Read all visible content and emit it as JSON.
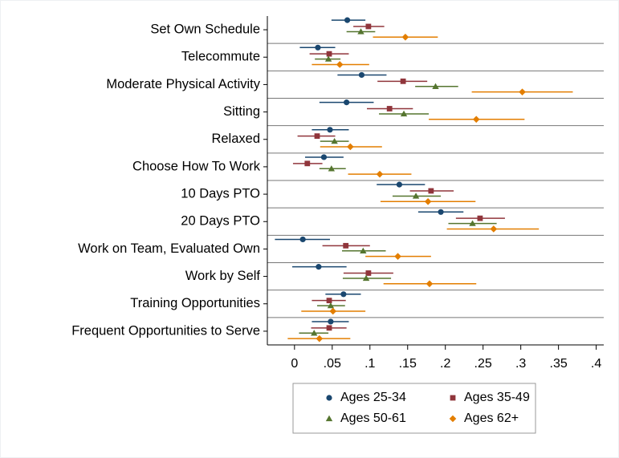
{
  "chart_data": {
    "type": "dot-errorbar",
    "categories": [
      "Set Own Schedule",
      "Telecommute",
      "Moderate Physical Activity",
      "Sitting",
      "Relaxed",
      "Choose How To Work",
      "10 Days PTO",
      "20 Days PTO",
      "Work on Team, Evaluated Own",
      "Work by Self",
      "Training Opportunities",
      "Frequent Opportunities to Serve"
    ],
    "series": [
      {
        "name": "Ages 25-34",
        "color": "#1a476f",
        "marker": "circle",
        "values": [
          0.07,
          0.031,
          0.089,
          0.069,
          0.047,
          0.039,
          0.139,
          0.194,
          0.011,
          0.032,
          0.065,
          0.048
        ],
        "lower": [
          0.049,
          0.007,
          0.057,
          0.033,
          0.023,
          0.014,
          0.109,
          0.164,
          -0.026,
          -0.003,
          0.041,
          0.023
        ],
        "upper": [
          0.094,
          0.054,
          0.122,
          0.105,
          0.072,
          0.065,
          0.173,
          0.224,
          0.047,
          0.069,
          0.088,
          0.072
        ]
      },
      {
        "name": "Ages 35-49",
        "color": "#90353b",
        "marker": "square",
        "values": [
          0.098,
          0.046,
          0.144,
          0.126,
          0.03,
          0.017,
          0.181,
          0.246,
          0.068,
          0.098,
          0.046,
          0.046
        ],
        "lower": [
          0.078,
          0.02,
          0.11,
          0.096,
          0.004,
          -0.002,
          0.153,
          0.214,
          0.037,
          0.065,
          0.023,
          0.022
        ],
        "upper": [
          0.119,
          0.072,
          0.176,
          0.157,
          0.054,
          0.037,
          0.211,
          0.279,
          0.1,
          0.131,
          0.068,
          0.069
        ]
      },
      {
        "name": "Ages 50-61",
        "color": "#55752f",
        "marker": "triangle",
        "values": [
          0.088,
          0.045,
          0.187,
          0.145,
          0.053,
          0.049,
          0.161,
          0.236,
          0.091,
          0.095,
          0.048,
          0.026
        ],
        "lower": [
          0.069,
          0.027,
          0.16,
          0.112,
          0.034,
          0.033,
          0.13,
          0.204,
          0.063,
          0.064,
          0.03,
          0.006
        ],
        "upper": [
          0.107,
          0.061,
          0.217,
          0.178,
          0.072,
          0.068,
          0.194,
          0.268,
          0.121,
          0.128,
          0.067,
          0.045
        ]
      },
      {
        "name": "Ages 62+",
        "color": "#e37e00",
        "marker": "diamond",
        "values": [
          0.147,
          0.06,
          0.302,
          0.241,
          0.074,
          0.113,
          0.177,
          0.264,
          0.137,
          0.179,
          0.051,
          0.033
        ],
        "lower": [
          0.104,
          0.023,
          0.235,
          0.178,
          0.034,
          0.071,
          0.114,
          0.202,
          0.094,
          0.118,
          0.009,
          -0.009
        ],
        "upper": [
          0.19,
          0.099,
          0.369,
          0.305,
          0.116,
          0.155,
          0.24,
          0.324,
          0.181,
          0.241,
          0.094,
          0.074
        ]
      }
    ],
    "xlim": [
      -0.036,
      0.41
    ],
    "xticks": [
      0,
      {
        "value": 0.05,
        "label": ".05"
      },
      {
        "value": 0.1,
        "label": ".1"
      },
      {
        "value": 0.15,
        "label": ".15"
      },
      {
        "value": 0.2,
        "label": ".2"
      },
      {
        "value": 0.25,
        "label": ".25"
      },
      {
        "value": 0.3,
        "label": ".3"
      },
      {
        "value": 0.35,
        "label": ".35"
      },
      {
        "value": 0.4,
        "label": ".4"
      }
    ],
    "legend": "bottom"
  }
}
